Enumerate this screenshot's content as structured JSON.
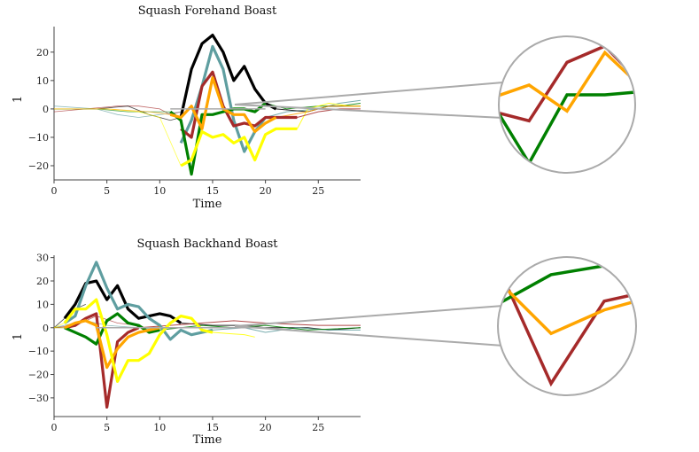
{
  "chart_data": [
    {
      "type": "line",
      "title": "Squash Forehand Boast",
      "xlabel": "Time",
      "ylabel": "1",
      "xlim": [
        0,
        29
      ],
      "ylim": [
        -25,
        29
      ],
      "xticks": [
        0,
        5,
        10,
        15,
        20,
        25
      ],
      "yticks": [
        -20,
        -10,
        0,
        10,
        20
      ],
      "series": [
        {
          "name": "black",
          "color": "#000000",
          "x": [
            12,
            13,
            14,
            15,
            16,
            17,
            18,
            19,
            20,
            21
          ],
          "y": [
            -3,
            14,
            23,
            26,
            20,
            10,
            15,
            7,
            2,
            0
          ]
        },
        {
          "name": "teal",
          "color": "#5f9ea0",
          "x": [
            12,
            13,
            14,
            15,
            16,
            17,
            18,
            19,
            20
          ],
          "y": [
            -12,
            -4,
            8,
            22,
            14,
            -4,
            -15,
            -8,
            -3
          ]
        },
        {
          "name": "brown",
          "color": "#a52a2a",
          "x": [
            12,
            13,
            14,
            15,
            16,
            17,
            18,
            19,
            20,
            21,
            22,
            23
          ],
          "y": [
            -7,
            -10,
            8,
            13,
            1,
            -6,
            -5,
            -6,
            -3,
            -3,
            -3,
            -3
          ]
        },
        {
          "name": "green",
          "color": "#008000",
          "x": [
            11,
            12,
            13,
            14,
            15,
            16,
            17,
            18,
            19,
            20
          ],
          "y": [
            -1,
            -4,
            -23,
            -2,
            -2,
            -1,
            0,
            0,
            -1,
            2
          ]
        },
        {
          "name": "orange",
          "color": "#ffa500",
          "x": [
            11,
            12,
            13,
            14,
            15,
            16,
            17,
            18,
            19,
            20,
            21
          ],
          "y": [
            -2,
            -3,
            1,
            -7,
            11,
            0,
            -2,
            -2,
            -8,
            -5,
            -3
          ]
        },
        {
          "name": "yellow",
          "color": "#ffff00",
          "x": [
            12,
            13,
            14,
            15,
            16,
            17,
            18,
            19,
            20,
            21,
            22,
            23
          ],
          "y": [
            -20,
            -18,
            -8,
            -10,
            -9,
            -12,
            -10,
            -18,
            -9,
            -7,
            -7,
            -7
          ]
        }
      ],
      "zoom_series": [
        "brown",
        "green",
        "orange"
      ]
    },
    {
      "type": "line",
      "title": "Squash Backhand Boast",
      "xlabel": "Time",
      "ylabel": "1",
      "xlim": [
        0,
        29
      ],
      "ylim": [
        -38,
        31
      ],
      "xticks": [
        0,
        5,
        10,
        15,
        20,
        25
      ],
      "yticks": [
        -30,
        -20,
        -10,
        0,
        10,
        20,
        30
      ],
      "series": [
        {
          "name": "black",
          "color": "#000000",
          "x": [
            1,
            2,
            3,
            4,
            5,
            6,
            7,
            8,
            9,
            10,
            11,
            12
          ],
          "y": [
            4,
            10,
            19,
            20,
            12,
            18,
            8,
            4,
            5,
            6,
            5,
            2
          ]
        },
        {
          "name": "teal",
          "color": "#5f9ea0",
          "x": [
            1,
            2,
            3,
            4,
            5,
            6,
            7,
            8,
            9,
            10,
            11,
            12,
            13,
            14,
            15
          ],
          "y": [
            2,
            5,
            18,
            28,
            17,
            8,
            10,
            9,
            4,
            1,
            -5,
            -1,
            -3,
            -2,
            -1
          ]
        },
        {
          "name": "brown",
          "color": "#a52a2a",
          "x": [
            1,
            2,
            3,
            4,
            5,
            6,
            7,
            8
          ],
          "y": [
            0,
            1,
            4,
            6,
            -34,
            -6,
            -2,
            0
          ]
        },
        {
          "name": "green",
          "color": "#008000",
          "x": [
            1,
            2,
            3,
            4,
            5,
            6,
            7,
            8,
            9,
            10
          ],
          "y": [
            0,
            -2,
            -4,
            -7,
            3,
            6,
            2,
            1,
            -2,
            -1
          ]
        },
        {
          "name": "orange",
          "color": "#ffa500",
          "x": [
            1,
            2,
            3,
            4,
            5,
            6,
            7,
            8,
            9,
            10
          ],
          "y": [
            0,
            2,
            3,
            1,
            -17,
            -9,
            -4,
            -2,
            -1,
            0
          ]
        },
        {
          "name": "yellow",
          "color": "#ffff00",
          "x": [
            1,
            2,
            3,
            4,
            5,
            6,
            7,
            8,
            9,
            10,
            11,
            12,
            13,
            14,
            15
          ],
          "y": [
            2,
            8,
            8,
            12,
            -3,
            -23,
            -14,
            -14,
            -11,
            -3,
            2,
            5,
            4,
            -1,
            -2
          ]
        }
      ],
      "zoom_series": [
        "brown",
        "green",
        "orange"
      ]
    }
  ]
}
